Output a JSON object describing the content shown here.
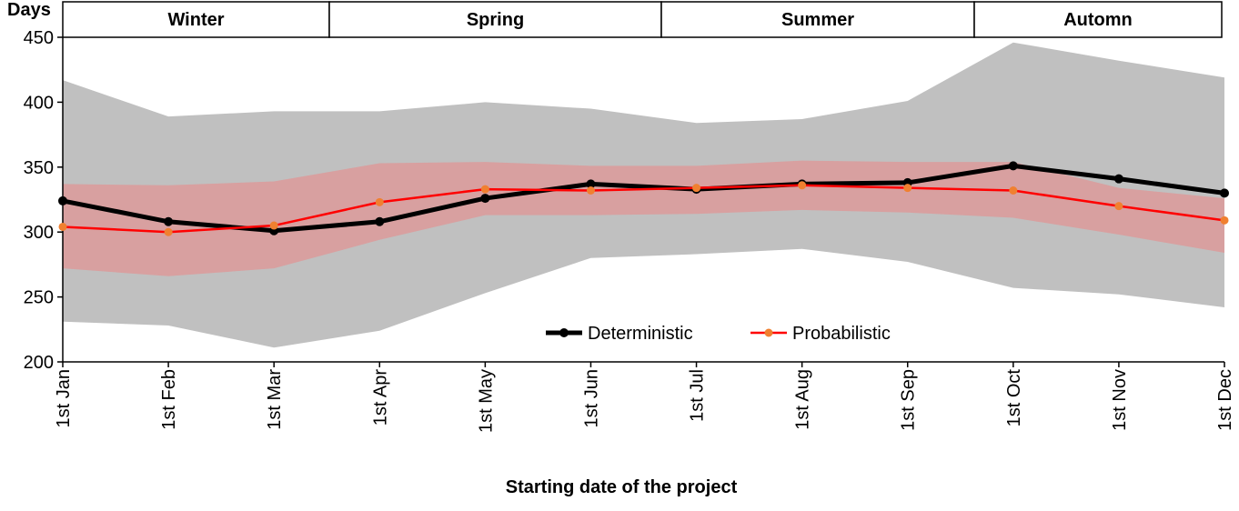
{
  "chart_data": {
    "type": "line",
    "title": "",
    "xlabel": "Starting date of the project",
    "ylabel": "Days",
    "ylim": [
      200,
      450
    ],
    "yticks": [
      200,
      250,
      300,
      350,
      400,
      450
    ],
    "categories": [
      "1st Jan",
      "1st Feb",
      "1st Mar",
      "1st Apr",
      "1st May",
      "1st Jun",
      "1st Jul",
      "1st Aug",
      "1st Sep",
      "1st Oct",
      "1st Nov",
      "1st Dec"
    ],
    "seasons": [
      {
        "label": "Winter",
        "from": "1st Jan",
        "to": "1st Apr"
      },
      {
        "label": "Spring",
        "from": "1st Apr",
        "to": "1st Jul"
      },
      {
        "label": "Summer",
        "from": "1st Jul",
        "to": "1st Oct"
      },
      {
        "label": "Automn",
        "from": "1st Oct",
        "to": "1st Dec"
      }
    ],
    "series": [
      {
        "name": "Deterministic",
        "color": "#000000",
        "values": [
          324,
          308,
          301,
          308,
          326,
          337,
          333,
          337,
          338,
          351,
          341,
          330
        ]
      },
      {
        "name": "Probabilistic",
        "color": "#ff0000",
        "marker_color": "#f08030",
        "values": [
          304,
          300,
          305,
          323,
          333,
          332,
          334,
          336,
          334,
          332,
          320,
          309
        ]
      }
    ],
    "bands": [
      {
        "color": "#c0c0c0",
        "upper": [
          417,
          389,
          393,
          393,
          400,
          395,
          384,
          387,
          401,
          446,
          432,
          419
        ],
        "lower": [
          231,
          228,
          211,
          224,
          253,
          280,
          283,
          287,
          277,
          257,
          252,
          242
        ]
      },
      {
        "color": "#d8a0a0",
        "upper": [
          337,
          336,
          339,
          353,
          354,
          351,
          351,
          355,
          354,
          354,
          334,
          326
        ],
        "lower": [
          272,
          266,
          272,
          294,
          313,
          313,
          314,
          317,
          315,
          311,
          298,
          284
        ]
      }
    ],
    "legend": {
      "position": "bottom-center",
      "entries": [
        "Deterministic",
        "Probabilistic"
      ]
    },
    "grid": false
  }
}
